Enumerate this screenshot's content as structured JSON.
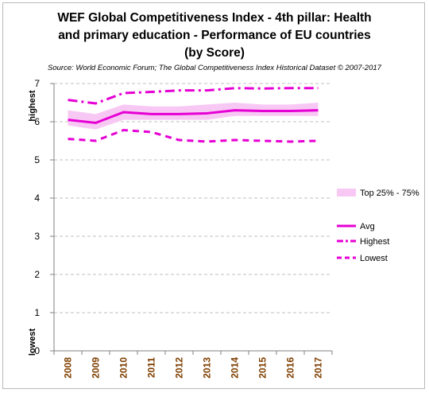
{
  "chart_data": {
    "type": "line",
    "title": "WEF Global Competitiveness Index - 4th pillar:  Health and primary education - Performance of EU countries (by  Score)",
    "title_lines": [
      "WEF Global Competitiveness Index - 4th pillar:  Health",
      "and primary education - Performance of EU countries",
      "(by  Score)"
    ],
    "subtitle": "Source: World Economic Forum; The Global Competitiveness Index Historical Dataset © 2007-2017",
    "categories": [
      "2008",
      "2009",
      "2010",
      "2011",
      "2012",
      "2013",
      "2014",
      "2015",
      "2016",
      "2017"
    ],
    "yticks": [
      "0",
      "1",
      "2",
      "3",
      "4",
      "5",
      "6",
      "7"
    ],
    "ylim": [
      0,
      7
    ],
    "y_top_label": "highest",
    "y_bottom_label": "lowest",
    "grid": true,
    "legend_position": "right",
    "band": {
      "name": "Top 25% - 75%",
      "lower": [
        5.9,
        5.8,
        6.05,
        6.05,
        6.05,
        6.05,
        6.15,
        6.15,
        6.15,
        6.15
      ],
      "upper": [
        6.3,
        6.2,
        6.45,
        6.4,
        6.4,
        6.45,
        6.5,
        6.45,
        6.45,
        6.5
      ],
      "color": "#f8c8f4"
    },
    "series": [
      {
        "name": "Avg",
        "values": [
          6.05,
          5.97,
          6.25,
          6.2,
          6.2,
          6.22,
          6.3,
          6.28,
          6.28,
          6.3
        ],
        "style": "solid",
        "color": "#e600d4"
      },
      {
        "name": "Highest",
        "values": [
          6.57,
          6.48,
          6.75,
          6.78,
          6.82,
          6.82,
          6.88,
          6.87,
          6.88,
          6.88
        ],
        "style": "dashdot",
        "color": "#e600d4"
      },
      {
        "name": "Lowest",
        "values": [
          5.55,
          5.5,
          5.78,
          5.73,
          5.52,
          5.48,
          5.52,
          5.5,
          5.48,
          5.5
        ],
        "style": "dashed",
        "color": "#e600d4"
      }
    ]
  }
}
